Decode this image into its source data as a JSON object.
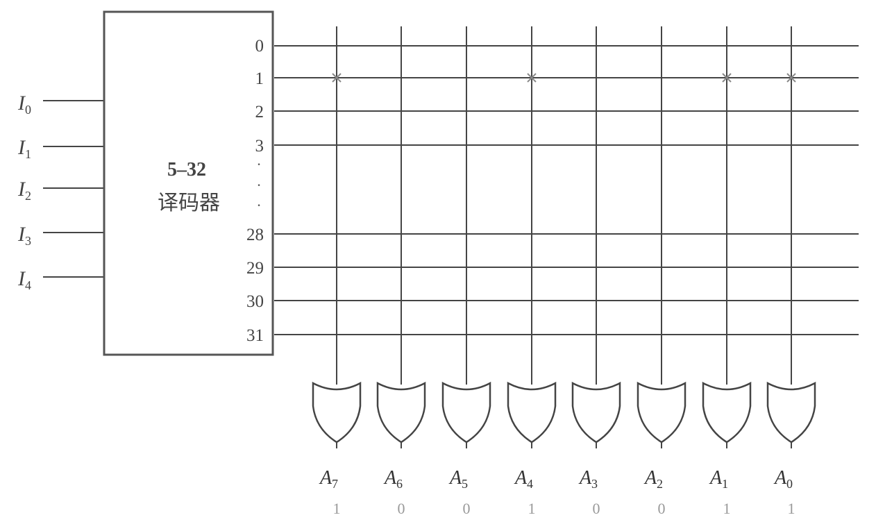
{
  "decoder": {
    "title": "5–32",
    "subtitle": "译码器"
  },
  "inputs": [
    {
      "letter": "I",
      "sub": "0"
    },
    {
      "letter": "I",
      "sub": "1"
    },
    {
      "letter": "I",
      "sub": "2"
    },
    {
      "letter": "I",
      "sub": "3"
    },
    {
      "letter": "I",
      "sub": "4"
    }
  ],
  "word_lines": [
    "0",
    "1",
    "2",
    "3",
    "28",
    "29",
    "30",
    "31"
  ],
  "ellipsis": [
    "·",
    "·",
    "·"
  ],
  "outputs": [
    {
      "letter": "A",
      "sub": "7",
      "bit": "1"
    },
    {
      "letter": "A",
      "sub": "6",
      "bit": "0"
    },
    {
      "letter": "A",
      "sub": "5",
      "bit": "0"
    },
    {
      "letter": "A",
      "sub": "4",
      "bit": "1"
    },
    {
      "letter": "A",
      "sub": "3",
      "bit": "0"
    },
    {
      "letter": "A",
      "sub": "2",
      "bit": "0"
    },
    {
      "letter": "A",
      "sub": "1",
      "bit": "1"
    },
    {
      "letter": "A",
      "sub": "0",
      "bit": "1"
    }
  ],
  "programmed_row": "1",
  "programmed_columns": [
    "7",
    "4",
    "1",
    "0"
  ]
}
